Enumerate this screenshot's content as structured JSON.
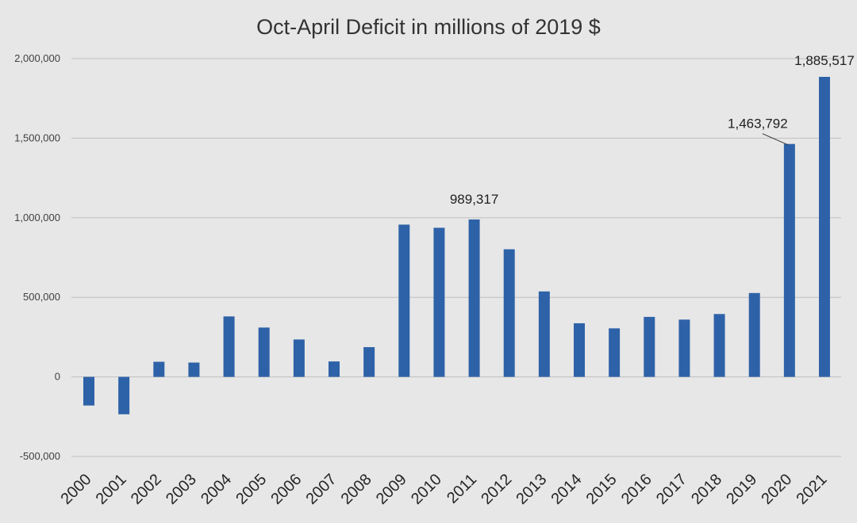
{
  "chart_data": {
    "type": "bar",
    "title": "Oct-April Deficit in millions of 2019 $",
    "xlabel": "",
    "ylabel": "",
    "ylim": [
      -500000,
      2000000
    ],
    "yticks": [
      -500000,
      0,
      500000,
      1000000,
      1500000,
      2000000
    ],
    "ytick_labels": [
      "-500,000",
      "0",
      "500,000",
      "1,000,000",
      "1,500,000",
      "2,000,000"
    ],
    "grid": true,
    "categories": [
      "2000",
      "2001",
      "2002",
      "2003",
      "2004",
      "2005",
      "2006",
      "2007",
      "2008",
      "2009",
      "2010",
      "2011",
      "2012",
      "2013",
      "2014",
      "2015",
      "2016",
      "2017",
      "2018",
      "2019",
      "2020",
      "2021"
    ],
    "values": [
      -180000,
      -235000,
      95000,
      90000,
      380000,
      310000,
      235000,
      97000,
      187000,
      957000,
      937000,
      989317,
      802000,
      537000,
      337000,
      305000,
      377000,
      360000,
      395000,
      527000,
      1463792,
      1885517
    ],
    "data_labels": [
      {
        "category": "2011",
        "text": "989,317"
      },
      {
        "category": "2020",
        "text": "1,463,792"
      },
      {
        "category": "2021",
        "text": "1,885,517"
      }
    ],
    "bar_color": "#2e62a8"
  }
}
